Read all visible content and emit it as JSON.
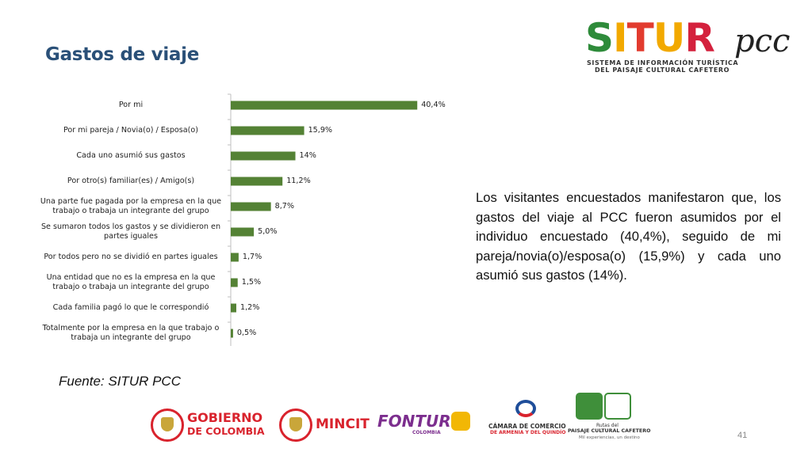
{
  "title": "Gastos de viaje",
  "logo": {
    "letters": [
      {
        "ch": "S",
        "color": "#2e8b3a"
      },
      {
        "ch": "I",
        "color": "#f2a900"
      },
      {
        "ch": "T",
        "color": "#e23b2e"
      },
      {
        "ch": "U",
        "color": "#f2a900"
      },
      {
        "ch": "R",
        "color": "#d4213d"
      }
    ],
    "suffix": "pcc",
    "tagline1": "SISTEMA DE INFORMACIÓN TURÍSTICA",
    "tagline2": "DEL PAISAJE CULTURAL CAFETERO"
  },
  "chart_data": {
    "type": "bar",
    "orientation": "horizontal",
    "categories": [
      "Por mi",
      "Por mi pareja / Novia(o) / Esposa(o)",
      "Cada uno asumió sus gastos",
      "Por otro(s) familiar(es) / Amigo(s)",
      "Una parte fue pagada por la empresa en la que trabajo o trabaja un integrante del grupo",
      "Se sumaron todos los gastos y se dividieron en partes iguales",
      "Por todos pero no se dividió en partes iguales",
      "Una entidad que no es la empresa en la que trabajo o trabaja un integrante del grupo",
      "Cada familia pagó lo que le correspondió",
      "Totalmente por la empresa en la que trabajo o trabaja un integrante del grupo"
    ],
    "category_lines": [
      [
        "Por mi"
      ],
      [
        "Por mi pareja / Novia(o) / Esposa(o)"
      ],
      [
        "Cada uno asumió sus gastos"
      ],
      [
        "Por otro(s) familiar(es) / Amigo(s)"
      ],
      [
        "Una parte fue pagada por la empresa en la que",
        "trabajo o trabaja un integrante del grupo"
      ],
      [
        "Se sumaron todos los gastos y se dividieron en",
        "partes iguales"
      ],
      [
        "Por todos pero no se dividió en partes iguales"
      ],
      [
        "Una entidad que no es la empresa en la que",
        "trabajo o trabaja un integrante del grupo"
      ],
      [
        "Cada familia pagó lo que le correspondió"
      ],
      [
        "Totalmente por la empresa en la que trabajo o",
        "trabaja un integrante del grupo"
      ]
    ],
    "values": [
      40.4,
      15.9,
      14,
      11.2,
      8.7,
      5.0,
      1.7,
      1.5,
      1.2,
      0.5
    ],
    "value_labels": [
      "40,4%",
      "15,9%",
      "14%",
      "11,2%",
      "8,7%",
      "5,0%",
      "1,7%",
      "1,5%",
      "1,2%",
      "0,5%"
    ],
    "xlim": [
      0,
      45
    ],
    "bar_color": "#548235",
    "axis_color": "#bfbfbf",
    "grid": false,
    "legend": false
  },
  "description": "Los visitantes encuestados manifestaron que, los gastos del viaje al PCC fueron asumidos por el individuo encuestado (40,4%), seguido de mi pareja/novia(o)/esposa(o) (15,9%) y  cada uno asumió sus gastos (14%).",
  "source": "Fuente: SITUR PCC",
  "footer": {
    "gobierno_line1": "GOBIERNO",
    "gobierno_line2": "DE COLOMBIA",
    "mincit": "MINCIT",
    "fontur": "FONTUR",
    "fontur_sub": "COLOMBIA",
    "camara_line1": "CÁMARA DE COMERCIO",
    "camara_line2": "DE ARMENIA Y DEL QUINDÍO",
    "rutas_line1": "Rutas del",
    "rutas_line2": "PAISAJE CULTURAL CAFETERO",
    "rutas_line3": "Mil experiencias, un destino"
  },
  "page_number": "41"
}
